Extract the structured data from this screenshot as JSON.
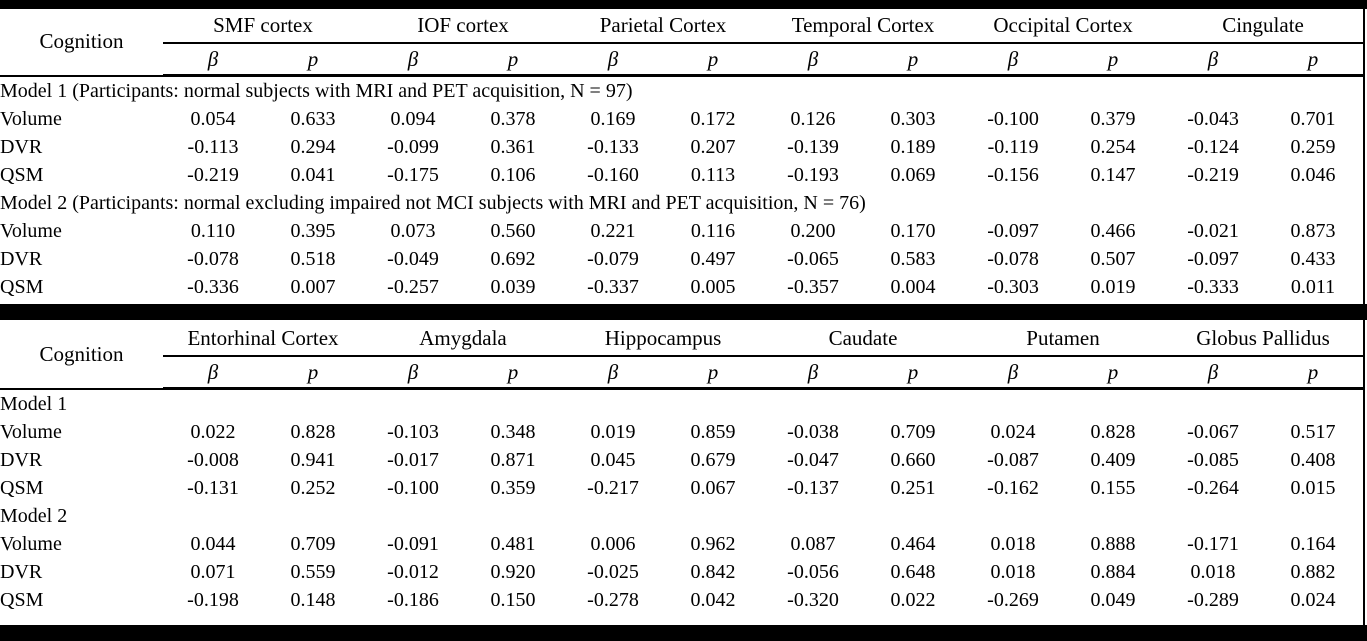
{
  "colors": {
    "background": "#ffffff",
    "text": "#000000",
    "rule": "#000000"
  },
  "header": {
    "corner_label": "Cognition",
    "beta_label": "β",
    "p_label": "p"
  },
  "table1": {
    "regions": [
      "SMF cortex",
      "IOF cortex",
      "Parietal Cortex",
      "Temporal Cortex",
      "Occipital Cortex",
      "Cingulate"
    ],
    "sections": [
      {
        "title": "Model 1 (Participants: normal subjects with MRI and PET acquisition, N = 97)",
        "rows": [
          {
            "label": "Volume",
            "values": [
              "0.054",
              "0.633",
              "0.094",
              "0.378",
              "0.169",
              "0.172",
              "0.126",
              "0.303",
              "-0.100",
              "0.379",
              "-0.043",
              "0.701"
            ],
            "bold": [
              0,
              0,
              0,
              0,
              0,
              0,
              0,
              0,
              0,
              0,
              0,
              0
            ]
          },
          {
            "label": "DVR",
            "values": [
              "-0.113",
              "0.294",
              "-0.099",
              "0.361",
              "-0.133",
              "0.207",
              "-0.139",
              "0.189",
              "-0.119",
              "0.254",
              "-0.124",
              "0.259"
            ],
            "bold": [
              0,
              0,
              0,
              0,
              0,
              0,
              0,
              0,
              0,
              0,
              0,
              0
            ]
          },
          {
            "label": "QSM",
            "values": [
              "-0.219",
              "0.041",
              "-0.175",
              "0.106",
              "-0.160",
              "0.113",
              "-0.193",
              "0.069",
              "-0.156",
              "0.147",
              "-0.219",
              "0.046"
            ],
            "bold": [
              1,
              1,
              0,
              0,
              0,
              0,
              0,
              0,
              0,
              0,
              1,
              1
            ]
          }
        ]
      },
      {
        "title": "Model 2 (Participants: normal excluding impaired not MCI subjects with MRI and PET acquisition, N = 76)",
        "rows": [
          {
            "label": "Volume",
            "values": [
              "0.110",
              "0.395",
              "0.073",
              "0.560",
              "0.221",
              "0.116",
              "0.200",
              "0.170",
              "-0.097",
              "0.466",
              "-0.021",
              "0.873"
            ],
            "bold": [
              0,
              0,
              0,
              0,
              0,
              0,
              0,
              0,
              0,
              0,
              0,
              0
            ]
          },
          {
            "label": "DVR",
            "values": [
              "-0.078",
              "0.518",
              "-0.049",
              "0.692",
              "-0.079",
              "0.497",
              "-0.065",
              "0.583",
              "-0.078",
              "0.507",
              "-0.097",
              "0.433"
            ],
            "bold": [
              0,
              0,
              0,
              0,
              0,
              0,
              0,
              0,
              0,
              0,
              0,
              0
            ]
          },
          {
            "label": "QSM",
            "values": [
              "-0.336",
              "0.007",
              "-0.257",
              "0.039",
              "-0.337",
              "0.005",
              "-0.357",
              "0.004",
              "-0.303",
              "0.019",
              "-0.333",
              "0.011"
            ],
            "bold": [
              1,
              1,
              1,
              1,
              1,
              1,
              1,
              1,
              1,
              1,
              1,
              1
            ]
          }
        ]
      }
    ]
  },
  "table2": {
    "regions": [
      "Entorhinal Cortex",
      "Amygdala",
      "Hippocampus",
      "Caudate",
      "Putamen",
      "Globus Pallidus"
    ],
    "sections": [
      {
        "title": "Model 1",
        "rows": [
          {
            "label": "Volume",
            "values": [
              "0.022",
              "0.828",
              "-0.103",
              "0.348",
              "0.019",
              "0.859",
              "-0.038",
              "0.709",
              "0.024",
              "0.828",
              "-0.067",
              "0.517"
            ],
            "bold": [
              0,
              0,
              0,
              0,
              0,
              0,
              0,
              0,
              0,
              0,
              0,
              0
            ]
          },
          {
            "label": "DVR",
            "values": [
              "-0.008",
              "0.941",
              "-0.017",
              "0.871",
              "0.045",
              "0.679",
              "-0.047",
              "0.660",
              "-0.087",
              "0.409",
              "-0.085",
              "0.408"
            ],
            "bold": [
              0,
              0,
              0,
              0,
              0,
              0,
              0,
              0,
              0,
              0,
              0,
              0
            ]
          },
          {
            "label": "QSM",
            "values": [
              "-0.131",
              "0.252",
              "-0.100",
              "0.359",
              "-0.217",
              "0.067",
              "-0.137",
              "0.251",
              "-0.162",
              "0.155",
              "-0.264",
              "0.015"
            ],
            "bold": [
              0,
              0,
              0,
              0,
              0,
              0,
              0,
              0,
              0,
              0,
              1,
              1
            ]
          }
        ]
      },
      {
        "title": "Model 2",
        "rows": [
          {
            "label": "Volume",
            "values": [
              "0.044",
              "0.709",
              "-0.091",
              "0.481",
              "0.006",
              "0.962",
              "0.087",
              "0.464",
              "0.018",
              "0.888",
              "-0.171",
              "0.164"
            ],
            "bold": [
              0,
              0,
              0,
              0,
              0,
              0,
              0,
              0,
              0,
              0,
              0,
              0
            ]
          },
          {
            "label": "DVR",
            "values": [
              "0.071",
              "0.559",
              "-0.012",
              "0.920",
              "-0.025",
              "0.842",
              "-0.056",
              "0.648",
              "0.018",
              "0.884",
              "0.018",
              "0.882"
            ],
            "bold": [
              0,
              0,
              0,
              0,
              0,
              0,
              0,
              0,
              0,
              0,
              0,
              0
            ]
          },
          {
            "label": "QSM",
            "values": [
              "-0.198",
              "0.148",
              "-0.186",
              "0.150",
              "-0.278",
              "0.042",
              "-0.320",
              "0.022",
              "-0.269",
              "0.049",
              "-0.289",
              "0.024"
            ],
            "bold": [
              0,
              0,
              0,
              0,
              1,
              1,
              1,
              1,
              1,
              1,
              1,
              1
            ]
          }
        ]
      }
    ]
  }
}
